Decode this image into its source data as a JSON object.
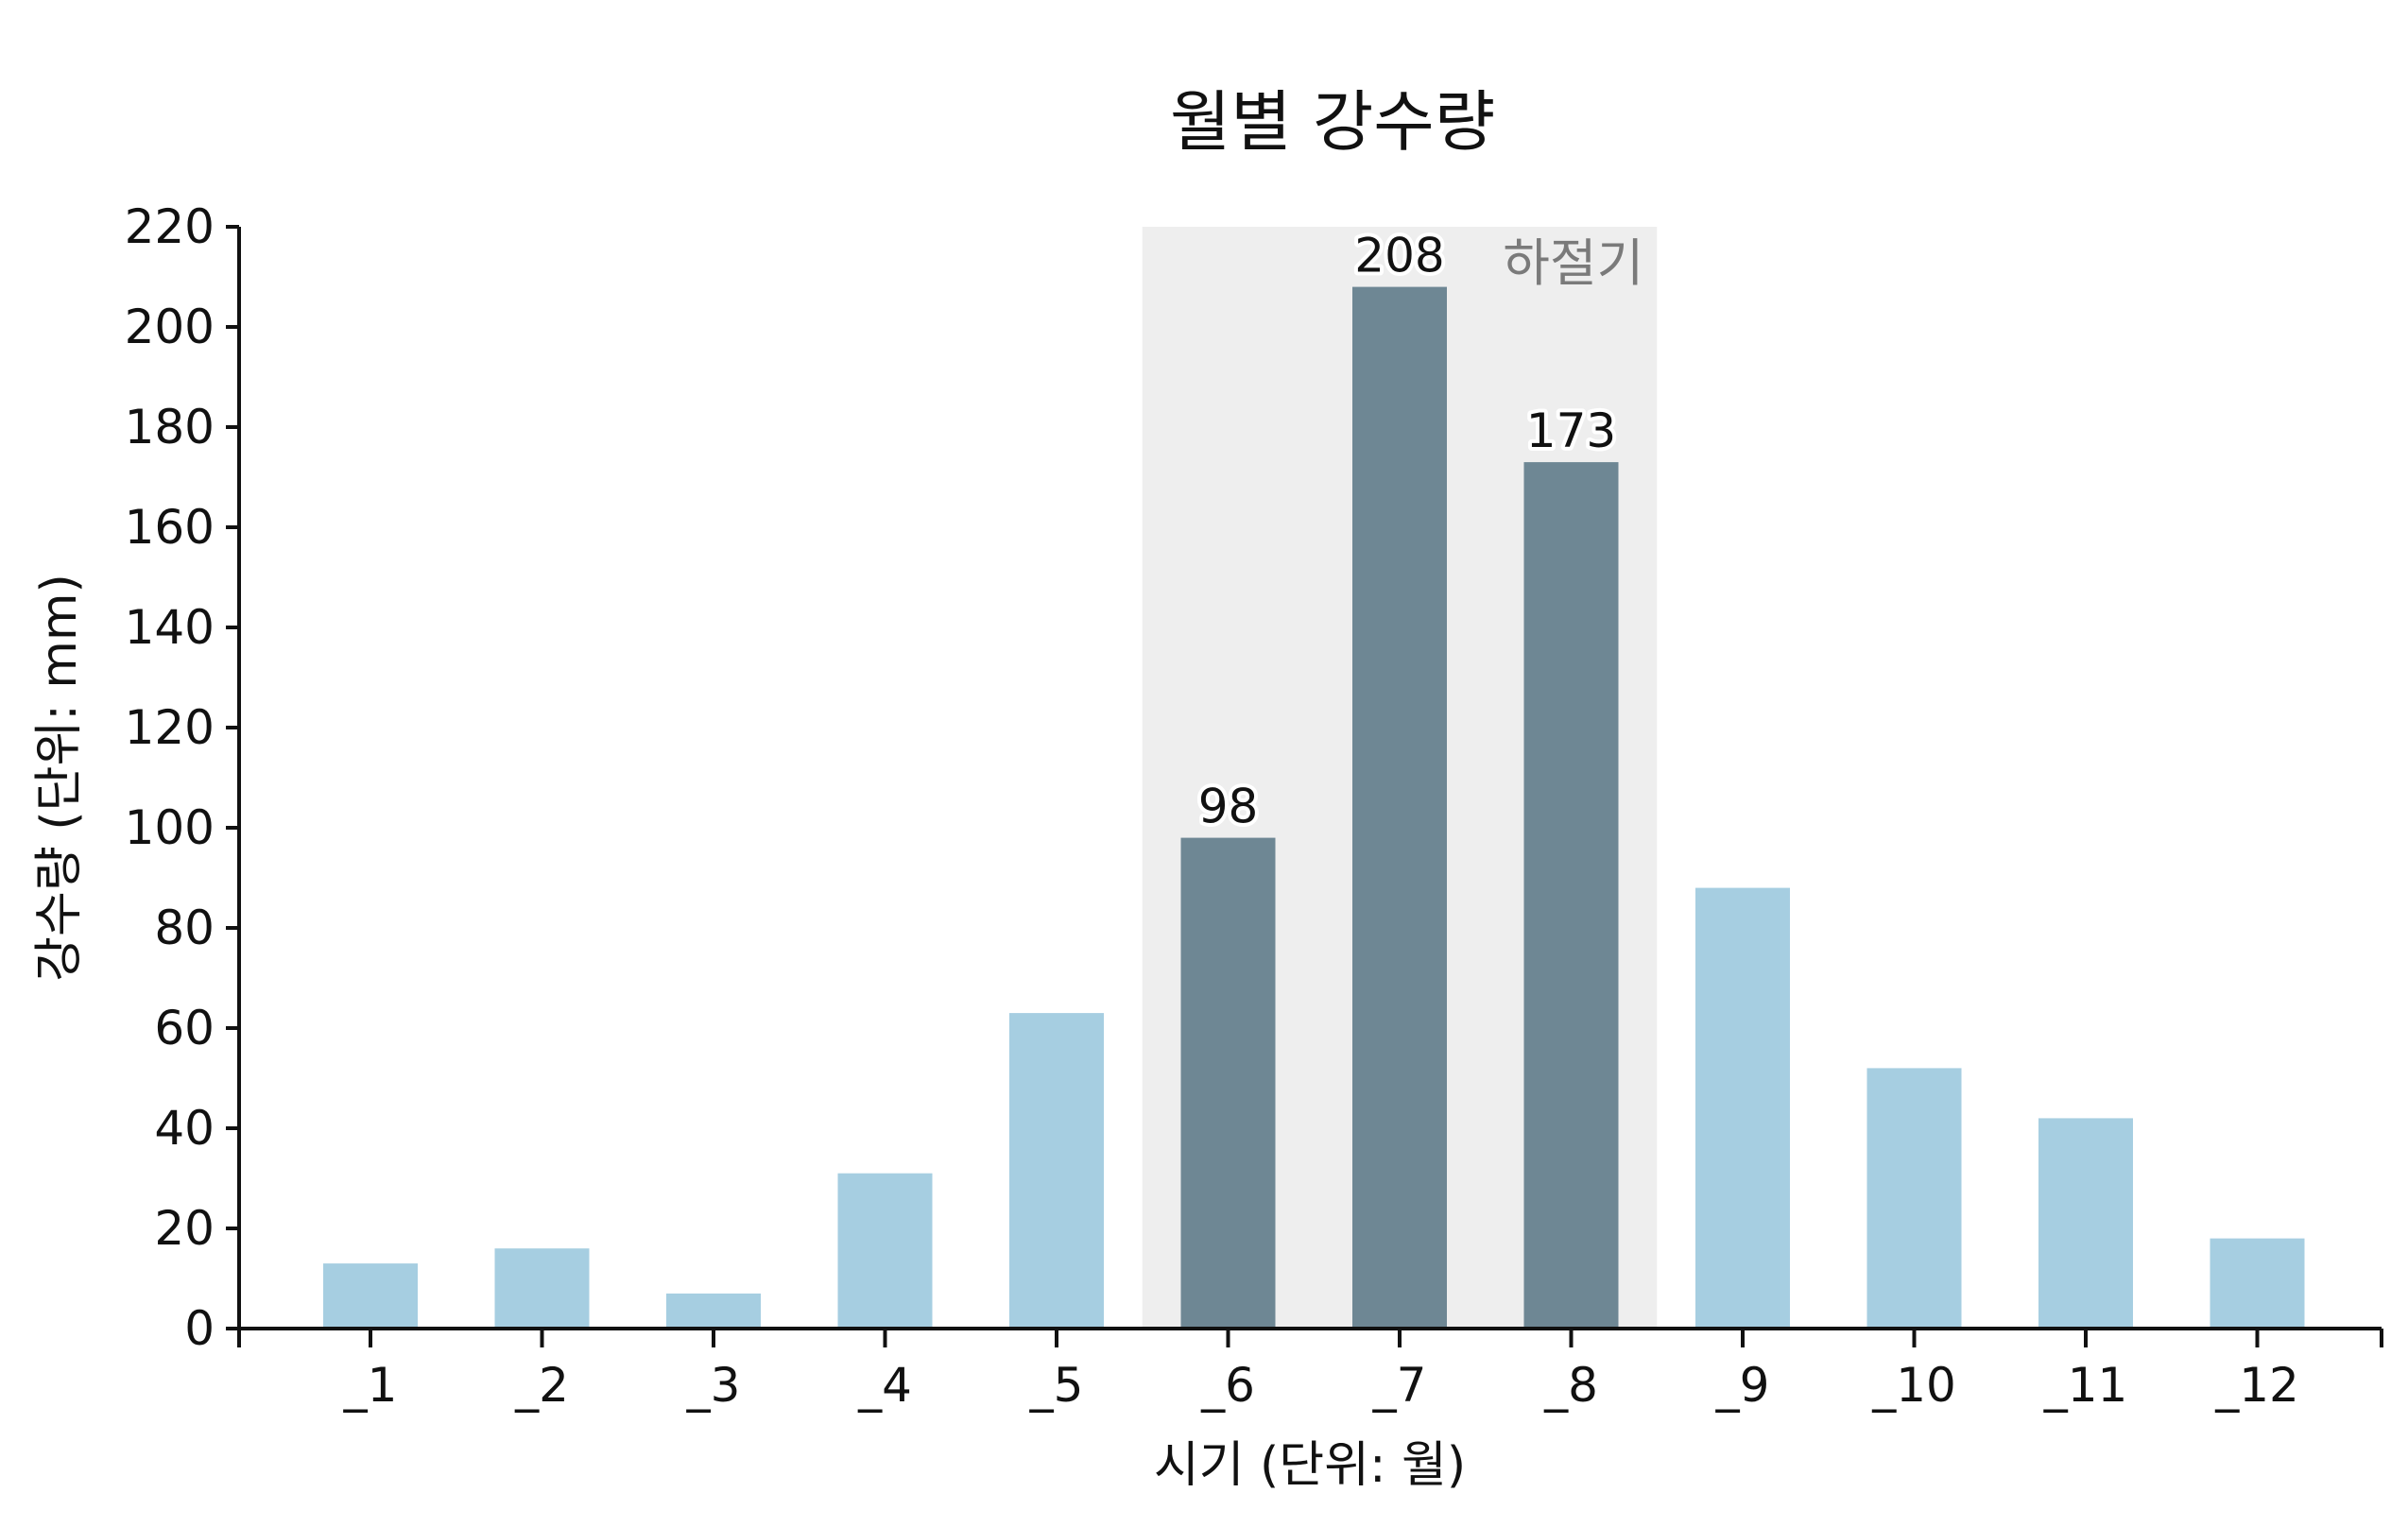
{
  "chart_data": {
    "type": "bar",
    "title": "월별 강수량",
    "xlabel": "시기 (단위: 월)",
    "ylabel": "강수량 (단위: mm)",
    "categories": [
      "_1",
      "_2",
      "_3",
      "_4",
      "_5",
      "_6",
      "_7",
      "_8",
      "_9",
      "_10",
      "_11",
      "_12"
    ],
    "values": [
      13,
      16,
      7,
      31,
      63,
      98,
      208,
      173,
      88,
      52,
      42,
      18
    ],
    "ylim": [
      0,
      220
    ],
    "yticks": [
      0,
      20,
      40,
      60,
      80,
      100,
      120,
      140,
      160,
      180,
      200,
      220
    ],
    "grid": false,
    "highlight": {
      "label": "하절기",
      "categories": [
        "_6",
        "_7",
        "_8"
      ],
      "data_labels": [
        "98",
        "208",
        "173"
      ]
    },
    "colors": {
      "bar": "#a6cee1",
      "bar_highlight": "#6e8794",
      "band": "#eeeeee",
      "band_label": "#7a7a7a",
      "axis": "#111111"
    }
  }
}
